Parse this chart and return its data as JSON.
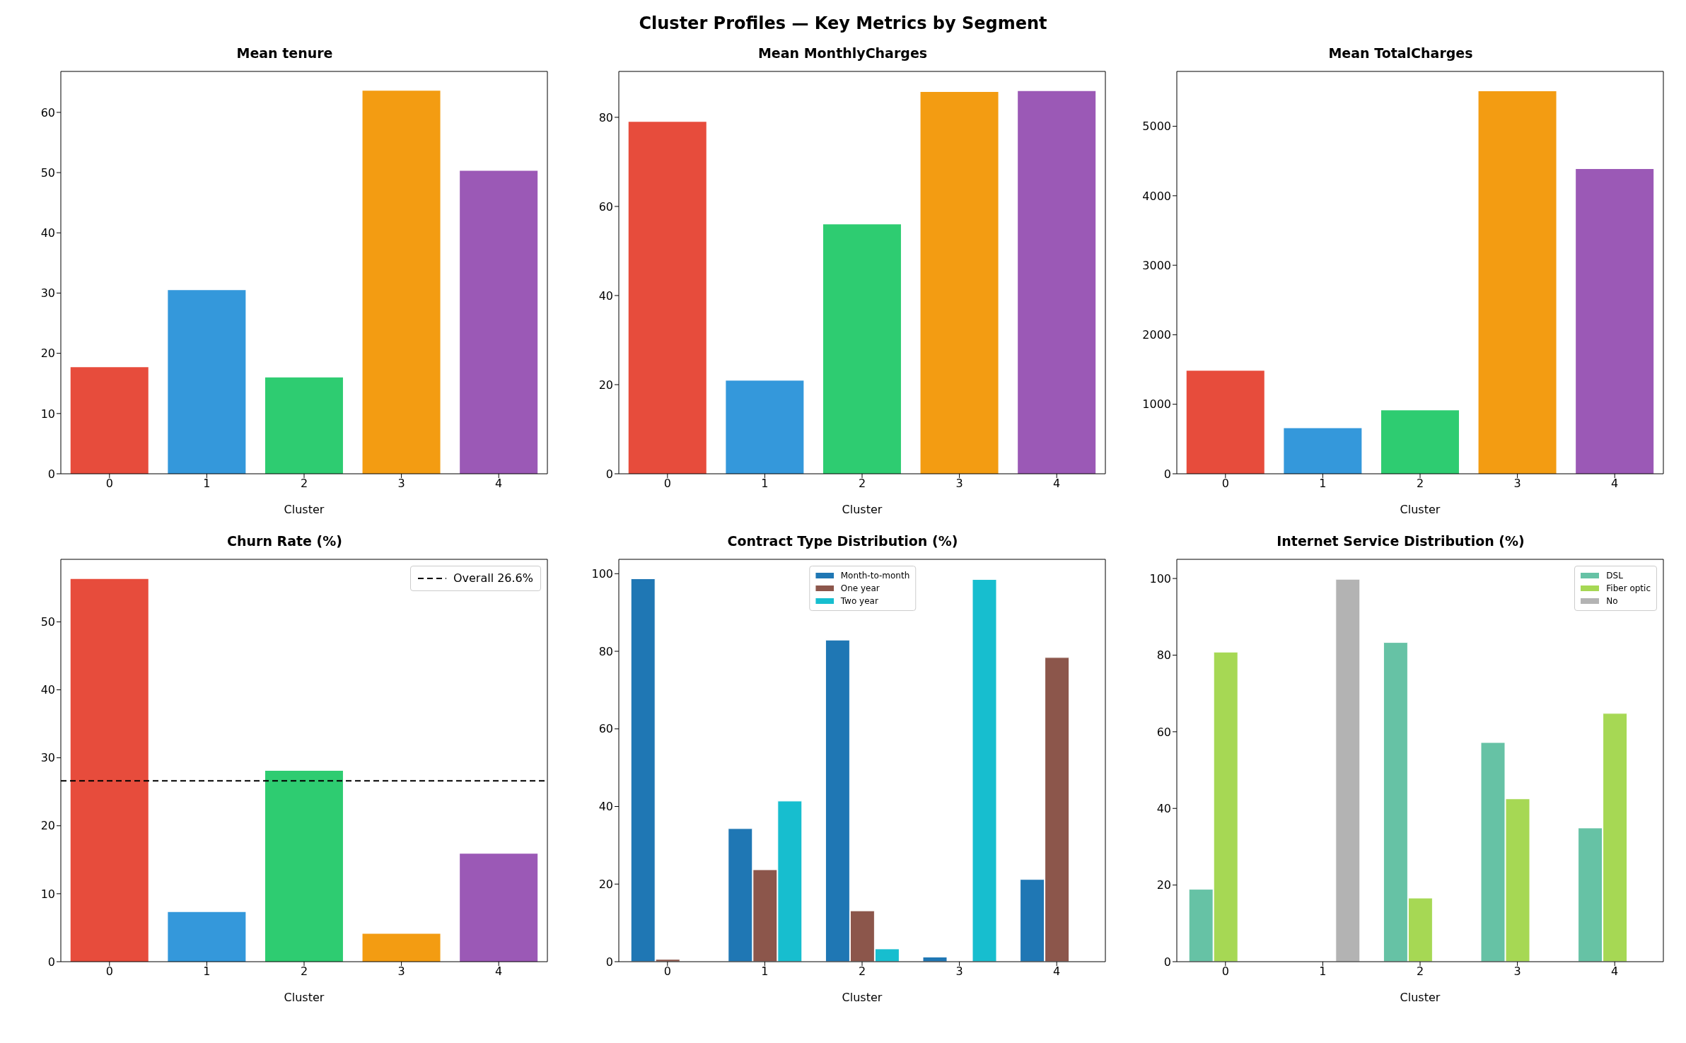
{
  "chart_data": [
    {
      "type": "other",
      "title": "Cluster Profiles — Key Metrics by Segment"
    },
    {
      "type": "bar",
      "title": "Mean tenure",
      "xlabel": "Cluster",
      "categories": [
        "0",
        "1",
        "2",
        "3",
        "4"
      ],
      "values": [
        17.7,
        30.5,
        16.0,
        63.6,
        50.3
      ],
      "colors": [
        "#e74c3c",
        "#3498db",
        "#2ecc71",
        "#f39c12",
        "#9b59b6"
      ],
      "ylim": [
        0,
        66.8
      ],
      "yticks": [
        0,
        10,
        20,
        30,
        40,
        50,
        60
      ],
      "grid": false
    },
    {
      "type": "bar",
      "title": "Mean MonthlyCharges",
      "xlabel": "Cluster",
      "categories": [
        "0",
        "1",
        "2",
        "3",
        "4"
      ],
      "values": [
        79.0,
        20.9,
        56.0,
        85.7,
        85.9
      ],
      "colors": [
        "#e74c3c",
        "#3498db",
        "#2ecc71",
        "#f39c12",
        "#9b59b6"
      ],
      "ylim": [
        0,
        90.3
      ],
      "yticks": [
        0,
        20,
        40,
        60,
        80
      ],
      "grid": false
    },
    {
      "type": "bar",
      "title": "Mean TotalCharges",
      "xlabel": "Cluster",
      "categories": [
        "0",
        "1",
        "2",
        "3",
        "4"
      ],
      "values": [
        1484,
        656,
        912,
        5503,
        4384
      ],
      "colors": [
        "#e74c3c",
        "#3498db",
        "#2ecc71",
        "#f39c12",
        "#9b59b6"
      ],
      "ylim": [
        0,
        5789
      ],
      "yticks": [
        0,
        1000,
        2000,
        3000,
        4000,
        5000
      ],
      "grid": false
    },
    {
      "type": "bar",
      "title": "Churn Rate (%)",
      "xlabel": "Cluster",
      "categories": [
        "0",
        "1",
        "2",
        "3",
        "4"
      ],
      "values": [
        56.3,
        7.3,
        28.1,
        4.1,
        15.9
      ],
      "colors": [
        "#e74c3c",
        "#3498db",
        "#2ecc71",
        "#f39c12",
        "#9b59b6"
      ],
      "ylim": [
        0,
        59.2
      ],
      "yticks": [
        0,
        10,
        20,
        30,
        40,
        50
      ],
      "grid": false,
      "legend": "top right",
      "ref_lines": [
        {
          "axis": "y",
          "value": 26.6,
          "label": "Overall 26.6%",
          "color": "#000000",
          "line_style": "dashed"
        }
      ]
    },
    {
      "type": "bar",
      "title": "Contract Type Distribution (%)",
      "xlabel": "Cluster",
      "categories": [
        "0",
        "1",
        "2",
        "3",
        "4"
      ],
      "ylim": [
        0,
        103.7
      ],
      "yticks": [
        0,
        20,
        40,
        60,
        80,
        100
      ],
      "grid": false,
      "legend": "top",
      "series": [
        {
          "name": "Month-to-month",
          "color": "#1f77b4",
          "values": [
            98.7,
            34.3,
            82.9,
            1.2,
            21.2
          ]
        },
        {
          "name": "One year",
          "color": "#8c564b",
          "values": [
            0.6,
            23.7,
            13.1,
            0,
            78.4
          ]
        },
        {
          "name": "Two year",
          "color": "#17becf",
          "values": [
            0,
            41.4,
            3.3,
            98.5,
            0
          ]
        }
      ]
    },
    {
      "type": "bar",
      "title": "Internet Service Distribution (%)",
      "xlabel": "Cluster",
      "categories": [
        "0",
        "1",
        "2",
        "3",
        "4"
      ],
      "ylim": [
        0,
        105
      ],
      "yticks": [
        0,
        20,
        40,
        60,
        80,
        100
      ],
      "grid": false,
      "legend": "top right",
      "series": [
        {
          "name": "DSL",
          "color": "#66c2a5",
          "values": [
            18.9,
            0,
            83.3,
            57.2,
            34.9
          ]
        },
        {
          "name": "Fiber optic",
          "color": "#a6d854",
          "values": [
            80.8,
            0,
            16.6,
            42.5,
            64.8
          ]
        },
        {
          "name": "No",
          "color": "#b3b3b3",
          "values": [
            0,
            99.8,
            0,
            0,
            0
          ]
        }
      ]
    }
  ]
}
